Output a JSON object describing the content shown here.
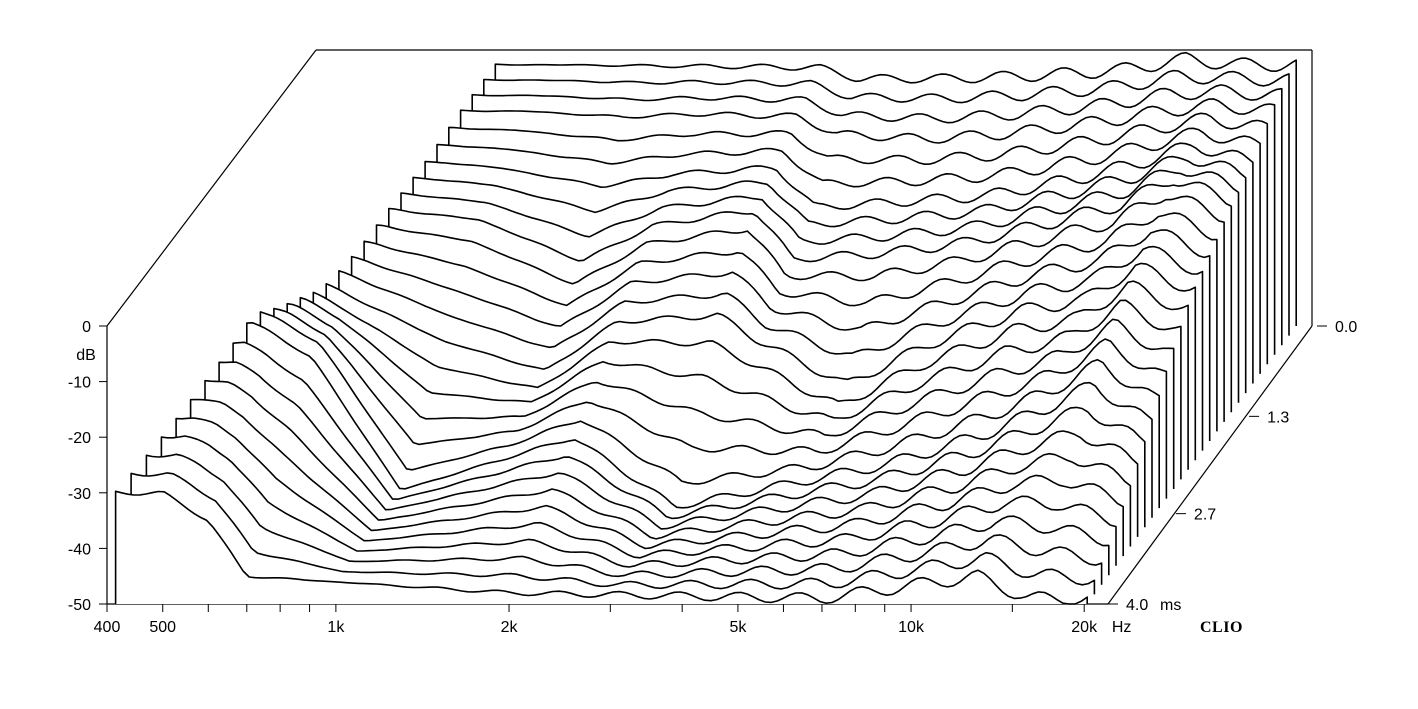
{
  "chart_data": {
    "type": "waterfall",
    "y_axis": {
      "unit": "dB",
      "ylim": [
        -50,
        0
      ],
      "ticks": [
        {
          "value": 0,
          "label": "0"
        },
        {
          "value": -10,
          "label": "-10"
        },
        {
          "value": -20,
          "label": "-20"
        },
        {
          "value": -30,
          "label": "-30"
        },
        {
          "value": -40,
          "label": "-40"
        },
        {
          "value": -50,
          "label": "-50"
        }
      ]
    },
    "x_axis": {
      "scale": "log",
      "unit": "Hz",
      "xlim": [
        400,
        22000
      ],
      "tick_labels": [
        {
          "value": 400,
          "label": "400"
        },
        {
          "value": 500,
          "label": "500"
        },
        {
          "value": 1000,
          "label": "1k"
        },
        {
          "value": 2000,
          "label": "2k"
        },
        {
          "value": 5000,
          "label": "5k"
        },
        {
          "value": 10000,
          "label": "10k"
        },
        {
          "value": 20000,
          "label": "20k"
        }
      ],
      "minor_ticks": [
        600,
        700,
        800,
        900,
        3000,
        4000,
        6000,
        7000,
        8000,
        9000,
        15000
      ]
    },
    "z_axis": {
      "unit": "ms",
      "zlim": [
        0,
        4.0
      ],
      "ticks": [
        {
          "value": 0.0,
          "label": "0.0"
        },
        {
          "value": 1.3,
          "label": "1.3"
        },
        {
          "value": 2.7,
          "label": "2.7"
        },
        {
          "value": 4.0,
          "label": "4.0"
        }
      ],
      "slices": 30
    },
    "series": [
      {
        "time_ms": 0.0,
        "freq": [
          800,
          1000,
          1500,
          2000,
          3000,
          3500,
          5000,
          7000,
          10000,
          13000,
          16000,
          20000
        ],
        "db": [
          -3,
          -3,
          -3.2,
          -3.3,
          -3.5,
          -5.5,
          -5.5,
          -5,
          -4,
          -2,
          -3,
          -3
        ]
      },
      {
        "time_ms": 0.4,
        "freq": [
          800,
          1000,
          1500,
          2000,
          3000,
          3500,
          5000,
          7000,
          10000,
          13000,
          16000,
          20000
        ],
        "db": [
          -6,
          -6,
          -7,
          -6.5,
          -7,
          -10,
          -11,
          -10,
          -8,
          -6,
          -5,
          -6
        ]
      },
      {
        "time_ms": 0.8,
        "freq": [
          800,
          1000,
          1500,
          2000,
          3000,
          3500,
          5000,
          7000,
          10000,
          13000,
          16000,
          20000
        ],
        "db": [
          -10,
          -11,
          -14,
          -12,
          -11,
          -18,
          -17,
          -16,
          -13,
          -10,
          -7,
          -10
        ]
      },
      {
        "time_ms": 1.3,
        "freq": [
          700,
          1000,
          1500,
          2000,
          3000,
          3500,
          5000,
          7000,
          10000,
          13000,
          16000,
          20000
        ],
        "db": [
          -14,
          -16,
          -24,
          -17,
          -14,
          -23,
          -22,
          -20,
          -16,
          -13,
          -8,
          -12
        ]
      },
      {
        "time_ms": 2.0,
        "freq": [
          600,
          1000,
          1500,
          2000,
          3000,
          5000,
          7000,
          10000,
          13000,
          16000,
          20000
        ],
        "db": [
          -18,
          -30,
          -35,
          -26,
          -25,
          -38,
          -30,
          -24,
          -22,
          -16,
          -20
        ]
      },
      {
        "time_ms": 2.7,
        "freq": [
          550,
          700,
          1000,
          2000,
          3000,
          7000,
          10000,
          13000,
          16000,
          20000
        ],
        "db": [
          -14,
          -20,
          -45,
          -35,
          -48,
          -40,
          -35,
          -30,
          -25,
          -32
        ]
      },
      {
        "time_ms": 4.0,
        "freq": [
          500,
          600,
          700,
          2000,
          7000,
          13000,
          16000
        ],
        "db": [
          -30,
          -35,
          -45,
          -48,
          -49,
          -45,
          -49
        ]
      }
    ],
    "title": "",
    "brand": "CLIO",
    "grid": false,
    "legend": "none"
  }
}
